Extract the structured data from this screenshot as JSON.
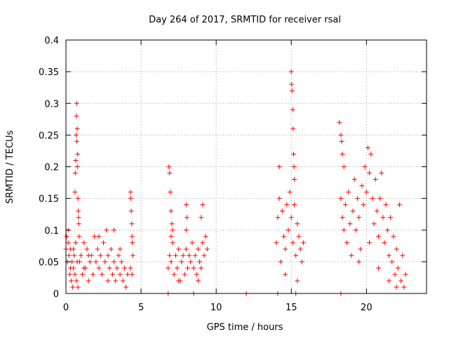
{
  "chart_data": {
    "type": "scatter",
    "title": "Day 264 of 2017, SRMTID for receiver rsal",
    "xlabel": "GPS time / hours",
    "ylabel": "SRMTID / TECUs",
    "xlim": [
      0,
      24
    ],
    "ylim": [
      0,
      0.4
    ],
    "x_ticks": [
      0,
      5,
      10,
      15,
      20
    ],
    "x_tick_labels": [
      "0",
      "5",
      "10",
      "15",
      "20"
    ],
    "y_ticks": [
      0,
      0.05,
      0.1,
      0.15,
      0.2,
      0.25,
      0.3,
      0.35,
      0.4
    ],
    "y_tick_labels": [
      "0",
      "0.05",
      "0.1",
      "0.15",
      "0.2",
      "0.25",
      "0.3",
      "0.35",
      "0.4"
    ],
    "grid": true,
    "legend": "none",
    "marker_color": "#ff0000",
    "marker": "plus",
    "series": [
      {
        "points": [
          [
            0.0,
            0.07
          ],
          [
            0.05,
            0.09
          ],
          [
            0.1,
            0.05
          ],
          [
            0.15,
            0.08
          ],
          [
            0.2,
            0.06
          ],
          [
            0.25,
            0.03
          ],
          [
            0.3,
            0.07
          ],
          [
            0.35,
            0.02
          ],
          [
            0.4,
            0.05
          ],
          [
            0.45,
            0.01
          ],
          [
            0.5,
            0.04
          ],
          [
            0.55,
            0.06
          ],
          [
            0.6,
            0.03
          ],
          [
            0.65,
            0.08
          ],
          [
            0.7,
            0.02
          ],
          [
            0.75,
            0.05
          ],
          [
            0.8,
            0.01
          ],
          [
            0.15,
            0.1
          ],
          [
            0.3,
            0.04
          ],
          [
            0.5,
            0.07
          ],
          [
            0.6,
            0.16
          ],
          [
            0.62,
            0.19
          ],
          [
            0.65,
            0.21
          ],
          [
            0.68,
            0.25
          ],
          [
            0.7,
            0.28
          ],
          [
            0.72,
            0.3
          ],
          [
            0.75,
            0.26
          ],
          [
            0.78,
            0.22
          ],
          [
            0.8,
            0.15
          ],
          [
            0.82,
            0.13
          ],
          [
            0.85,
            0.11
          ],
          [
            0.88,
            0.09
          ],
          [
            0.72,
            0.24
          ],
          [
            0.76,
            0.2
          ],
          [
            0.84,
            0.12
          ],
          [
            0.9,
            0.05
          ],
          [
            1.0,
            0.06
          ],
          [
            1.1,
            0.03
          ],
          [
            1.2,
            0.08
          ],
          [
            1.3,
            0.04
          ],
          [
            1.4,
            0.07
          ],
          [
            1.5,
            0.02
          ],
          [
            1.6,
            0.05
          ],
          [
            1.7,
            0.06
          ],
          [
            1.8,
            0.03
          ],
          [
            1.9,
            0.09
          ],
          [
            2.0,
            0.05
          ],
          [
            2.1,
            0.07
          ],
          [
            2.2,
            0.04
          ],
          [
            2.3,
            0.06
          ],
          [
            2.4,
            0.03
          ],
          [
            2.5,
            0.08
          ],
          [
            2.6,
            0.05
          ],
          [
            2.7,
            0.1
          ],
          [
            2.8,
            0.06
          ],
          [
            2.9,
            0.04
          ],
          [
            3.0,
            0.07
          ],
          [
            3.1,
            0.03
          ],
          [
            3.2,
            0.05
          ],
          [
            3.3,
            0.02
          ],
          [
            3.4,
            0.04
          ],
          [
            3.5,
            0.06
          ],
          [
            3.6,
            0.03
          ],
          [
            3.7,
            0.05
          ],
          [
            3.8,
            0.02
          ],
          [
            3.9,
            0.04
          ],
          [
            4.0,
            0.01
          ],
          [
            4.1,
            0.03
          ],
          [
            3.2,
            0.1
          ],
          [
            1.5,
            0.06
          ],
          [
            2.2,
            0.09
          ],
          [
            2.8,
            0.02
          ],
          [
            1.2,
            0.04
          ],
          [
            3.6,
            0.07
          ],
          [
            4.3,
            0.16
          ],
          [
            4.32,
            0.15
          ],
          [
            4.35,
            0.13
          ],
          [
            4.38,
            0.11
          ],
          [
            4.4,
            0.09
          ],
          [
            4.42,
            0.08
          ],
          [
            4.45,
            0.06
          ],
          [
            4.3,
            0.04
          ],
          [
            4.4,
            0.03
          ],
          [
            6.8,
            0.04
          ],
          [
            6.9,
            0.06
          ],
          [
            7.0,
            0.05
          ],
          [
            7.1,
            0.08
          ],
          [
            7.2,
            0.03
          ],
          [
            7.3,
            0.06
          ],
          [
            7.4,
            0.04
          ],
          [
            7.5,
            0.07
          ],
          [
            7.6,
            0.02
          ],
          [
            7.7,
            0.05
          ],
          [
            7.8,
            0.06
          ],
          [
            7.9,
            0.03
          ],
          [
            8.0,
            0.07
          ],
          [
            8.1,
            0.04
          ],
          [
            8.2,
            0.06
          ],
          [
            8.3,
            0.05
          ],
          [
            8.4,
            0.08
          ],
          [
            8.5,
            0.04
          ],
          [
            8.6,
            0.06
          ],
          [
            8.7,
            0.03
          ],
          [
            8.8,
            0.07
          ],
          [
            8.9,
            0.05
          ],
          [
            9.0,
            0.04
          ],
          [
            9.1,
            0.08
          ],
          [
            9.2,
            0.06
          ],
          [
            9.3,
            0.09
          ],
          [
            9.4,
            0.07
          ],
          [
            7.0,
            0.09
          ],
          [
            8.0,
            0.1
          ],
          [
            9.0,
            0.12
          ],
          [
            7.5,
            0.02
          ],
          [
            8.8,
            0.02
          ],
          [
            6.85,
            0.2
          ],
          [
            6.9,
            0.19
          ],
          [
            6.95,
            0.16
          ],
          [
            7.0,
            0.13
          ],
          [
            7.05,
            0.11
          ],
          [
            7.1,
            0.1
          ],
          [
            8.0,
            0.14
          ],
          [
            8.05,
            0.12
          ],
          [
            9.1,
            0.14
          ],
          [
            14.0,
            0.08
          ],
          [
            14.1,
            0.12
          ],
          [
            14.2,
            0.15
          ],
          [
            14.3,
            0.05
          ],
          [
            14.4,
            0.13
          ],
          [
            14.5,
            0.09
          ],
          [
            14.6,
            0.07
          ],
          [
            14.7,
            0.14
          ],
          [
            14.8,
            0.1
          ],
          [
            14.9,
            0.16
          ],
          [
            15.0,
            0.12
          ],
          [
            15.1,
            0.08
          ],
          [
            15.2,
            0.14
          ],
          [
            15.3,
            0.06
          ],
          [
            15.4,
            0.11
          ],
          [
            15.5,
            0.09
          ],
          [
            15.6,
            0.07
          ],
          [
            15.7,
            0.05
          ],
          [
            15.8,
            0.08
          ],
          [
            14.2,
            0.2
          ],
          [
            14.6,
            0.03
          ],
          [
            15.4,
            0.02
          ],
          [
            15.0,
            0.35
          ],
          [
            15.02,
            0.33
          ],
          [
            15.05,
            0.32
          ],
          [
            15.1,
            0.29
          ],
          [
            15.12,
            0.26
          ],
          [
            15.15,
            0.22
          ],
          [
            15.18,
            0.2
          ],
          [
            15.2,
            0.18
          ],
          [
            18.2,
            0.27
          ],
          [
            18.3,
            0.25
          ],
          [
            18.35,
            0.24
          ],
          [
            18.4,
            0.22
          ],
          [
            18.5,
            0.2
          ],
          [
            18.3,
            0.15
          ],
          [
            18.4,
            0.12
          ],
          [
            18.5,
            0.1
          ],
          [
            18.6,
            0.14
          ],
          [
            18.7,
            0.08
          ],
          [
            18.8,
            0.16
          ],
          [
            18.9,
            0.11
          ],
          [
            19.0,
            0.06
          ],
          [
            19.1,
            0.13
          ],
          [
            19.2,
            0.18
          ],
          [
            19.3,
            0.1
          ],
          [
            19.4,
            0.15
          ],
          [
            19.5,
            0.12
          ],
          [
            19.6,
            0.07
          ],
          [
            19.7,
            0.17
          ],
          [
            19.8,
            0.14
          ],
          [
            19.9,
            0.2
          ],
          [
            20.0,
            0.16
          ],
          [
            20.1,
            0.23
          ],
          [
            20.2,
            0.19
          ],
          [
            20.3,
            0.22
          ],
          [
            20.4,
            0.15
          ],
          [
            20.5,
            0.11
          ],
          [
            20.6,
            0.18
          ],
          [
            20.7,
            0.13
          ],
          [
            20.8,
            0.09
          ],
          [
            20.9,
            0.15
          ],
          [
            21.0,
            0.19
          ],
          [
            21.1,
            0.12
          ],
          [
            21.2,
            0.08
          ],
          [
            21.3,
            0.14
          ],
          [
            21.4,
            0.1
          ],
          [
            21.5,
            0.06
          ],
          [
            21.6,
            0.12
          ],
          [
            21.7,
            0.05
          ],
          [
            21.8,
            0.09
          ],
          [
            21.9,
            0.03
          ],
          [
            22.0,
            0.07
          ],
          [
            22.1,
            0.04
          ],
          [
            22.2,
            0.14
          ],
          [
            22.3,
            0.02
          ],
          [
            22.4,
            0.06
          ],
          [
            22.5,
            0.01
          ],
          [
            22.6,
            0.03
          ],
          [
            19.5,
            0.05
          ],
          [
            20.2,
            0.08
          ],
          [
            20.8,
            0.04
          ],
          [
            21.5,
            0.02
          ],
          [
            22.0,
            0.01
          ],
          [
            6.8,
            0.0
          ],
          [
            8.5,
            0.0
          ],
          [
            12.0,
            0.0
          ],
          [
            14.1,
            0.0
          ],
          [
            15.3,
            0.0
          ],
          [
            18.3,
            0.0
          ]
        ]
      }
    ]
  }
}
